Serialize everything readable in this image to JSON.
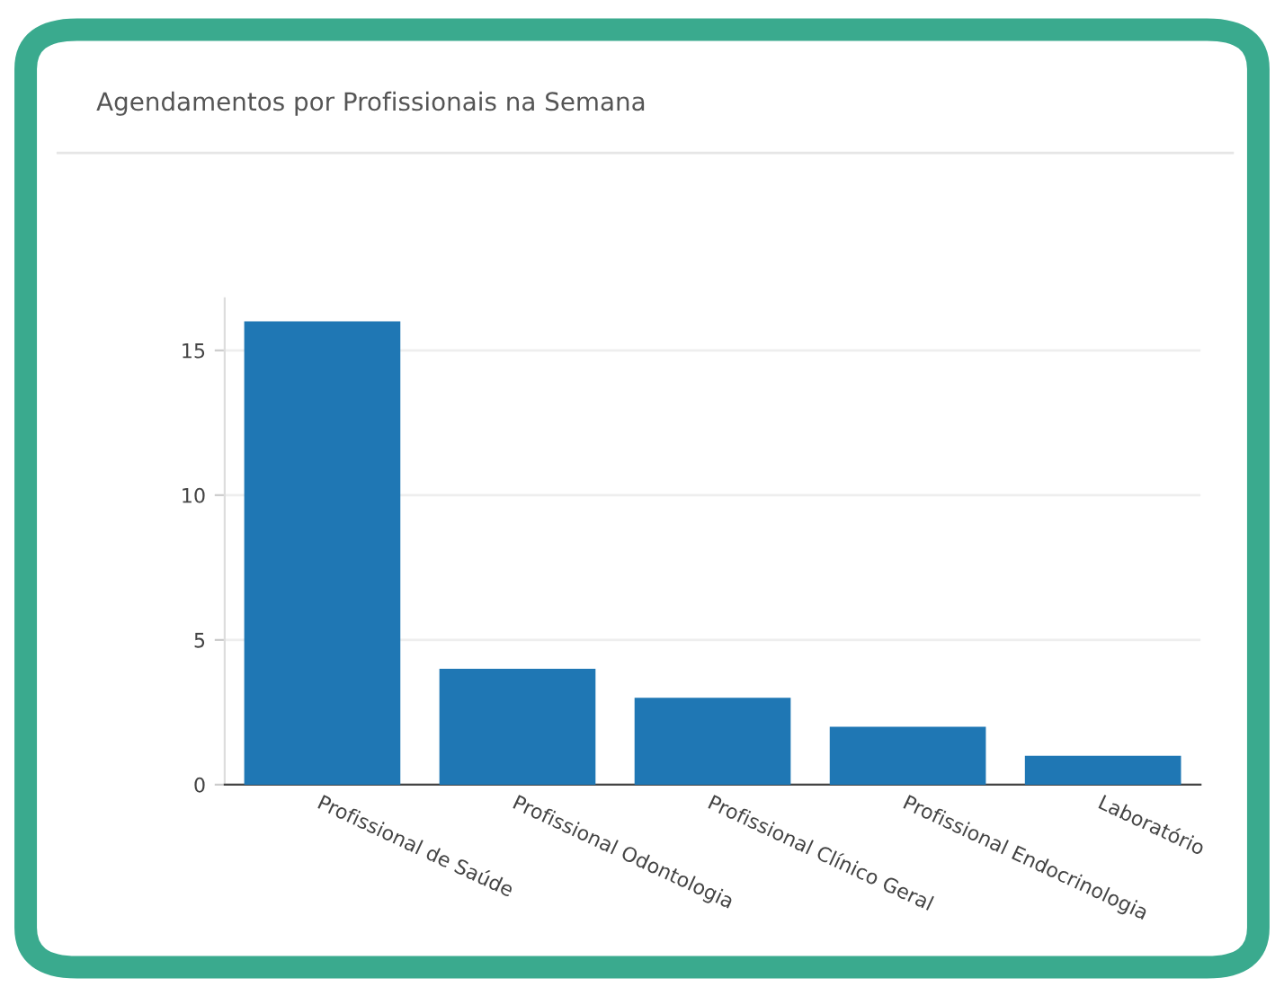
{
  "chart_data": {
    "type": "bar",
    "title": "Agendamentos por Profissionais na Semana",
    "categories": [
      "Profissional de Saúde",
      "Profissional Odontologia",
      "Profissional Clínico Geral",
      "Profissional Endocrinologia",
      "Laboratório"
    ],
    "values": [
      16,
      4,
      3,
      2,
      1
    ],
    "color": "#1f77b4",
    "ylim": [
      0,
      16.8
    ],
    "yticks": [
      0,
      5,
      10,
      15
    ],
    "grid": "y"
  }
}
